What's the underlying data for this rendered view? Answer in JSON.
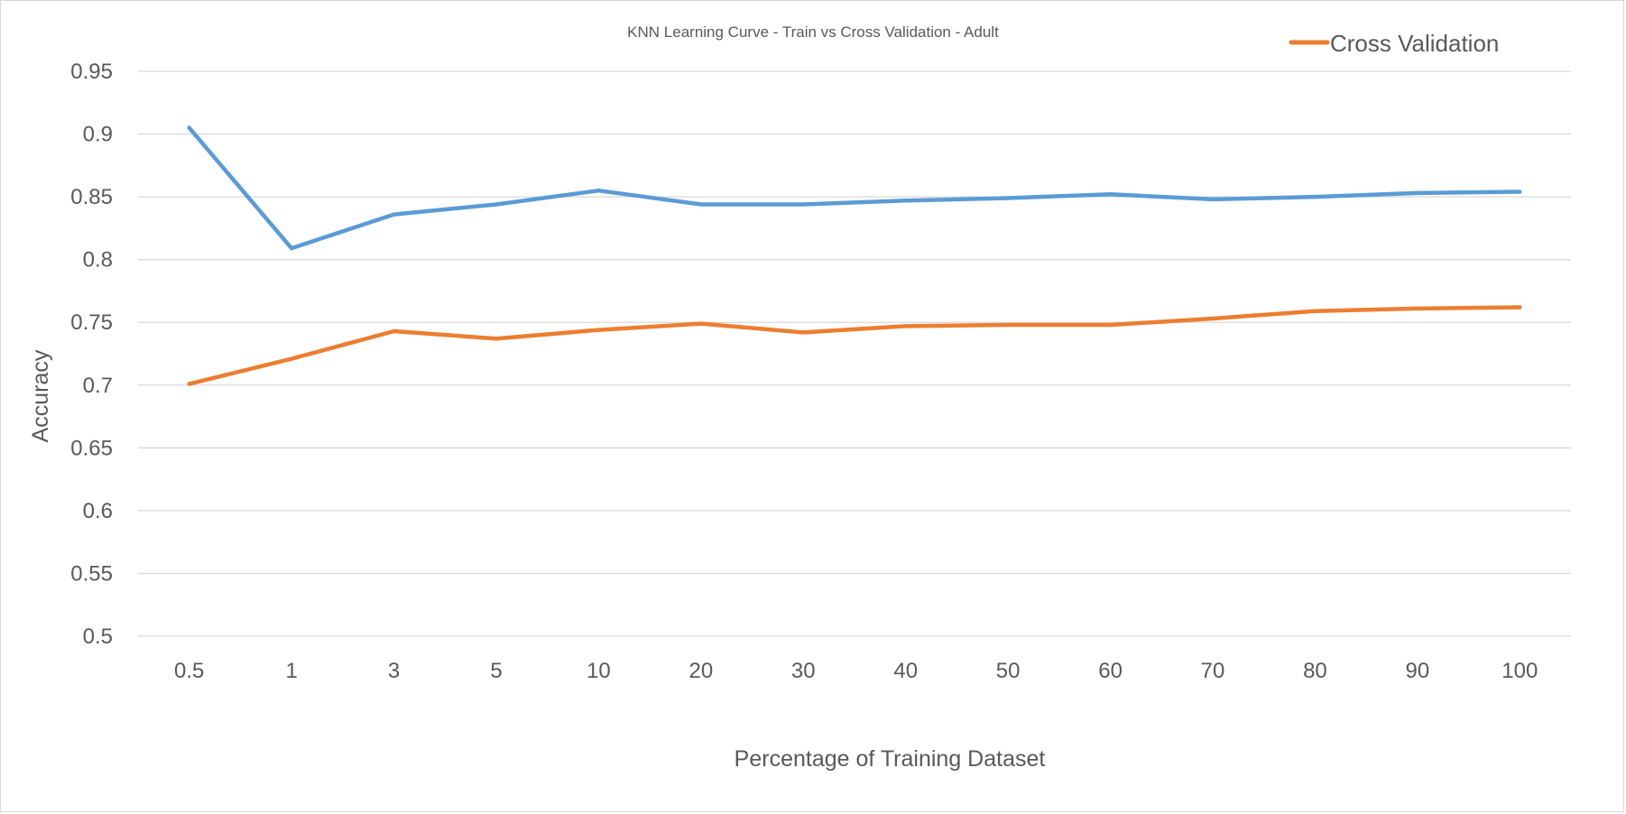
{
  "chart_data": {
    "type": "line",
    "title": "KNN Learning Curve - Train vs Cross Validation - Adult",
    "xlabel": "Percentage of Training Dataset",
    "ylabel": "Accuracy",
    "categories": [
      "0.5",
      "1",
      "3",
      "5",
      "10",
      "20",
      "30",
      "40",
      "50",
      "60",
      "70",
      "80",
      "90",
      "100"
    ],
    "y_ticks": [
      "0.5",
      "0.55",
      "0.6",
      "0.65",
      "0.7",
      "0.75",
      "0.8",
      "0.85",
      "0.9",
      "0.95"
    ],
    "ylim": [
      0.5,
      0.95
    ],
    "grid": true,
    "legend_position": "top-right",
    "series": [
      {
        "color": "#5B9BD5",
        "values": [
          0.905,
          0.809,
          0.836,
          0.844,
          0.855,
          0.844,
          0.844,
          0.847,
          0.849,
          0.852,
          0.848,
          0.85,
          0.853,
          0.854
        ]
      },
      {
        "name": "Cross Validation",
        "color": "#ED7D31",
        "values": [
          0.701,
          0.721,
          0.743,
          0.737,
          0.744,
          0.749,
          0.742,
          0.747,
          0.748,
          0.748,
          0.753,
          0.759,
          0.761,
          0.762
        ]
      }
    ]
  }
}
